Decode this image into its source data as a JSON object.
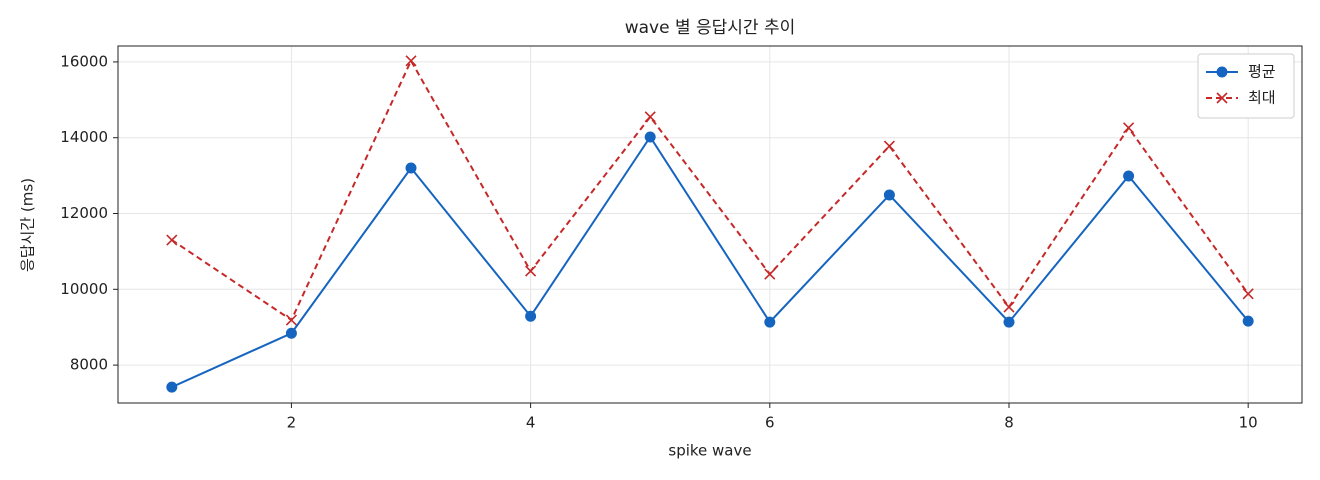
{
  "chart_data": {
    "type": "line",
    "title": "wave 별 응답시간 추이",
    "x_label": "spike wave",
    "y_label": "응답시간 (ms)",
    "x": [
      1,
      2,
      3,
      4,
      5,
      6,
      7,
      8,
      9,
      10
    ],
    "series": [
      {
        "name": "평균",
        "color": "#1565c0",
        "marker": "circle",
        "linestyle": "solid",
        "values": [
          7420,
          8840,
          13200,
          9290,
          14020,
          9135,
          12490,
          9135,
          12990,
          9160
        ]
      },
      {
        "name": "최대",
        "color": "#c62828",
        "marker": "x",
        "linestyle": "dashed",
        "values": [
          11300,
          9190,
          16030,
          10480,
          14550,
          10400,
          13780,
          9530,
          14260,
          9880
        ]
      }
    ],
    "xlim": [
      0.55,
      10.45
    ],
    "xticks": [
      2,
      4,
      6,
      8,
      10
    ],
    "ylim": [
      7000,
      16420
    ],
    "yticks": [
      8000,
      10000,
      12000,
      14000,
      16000
    ],
    "grid": true,
    "legend": "upper right"
  }
}
